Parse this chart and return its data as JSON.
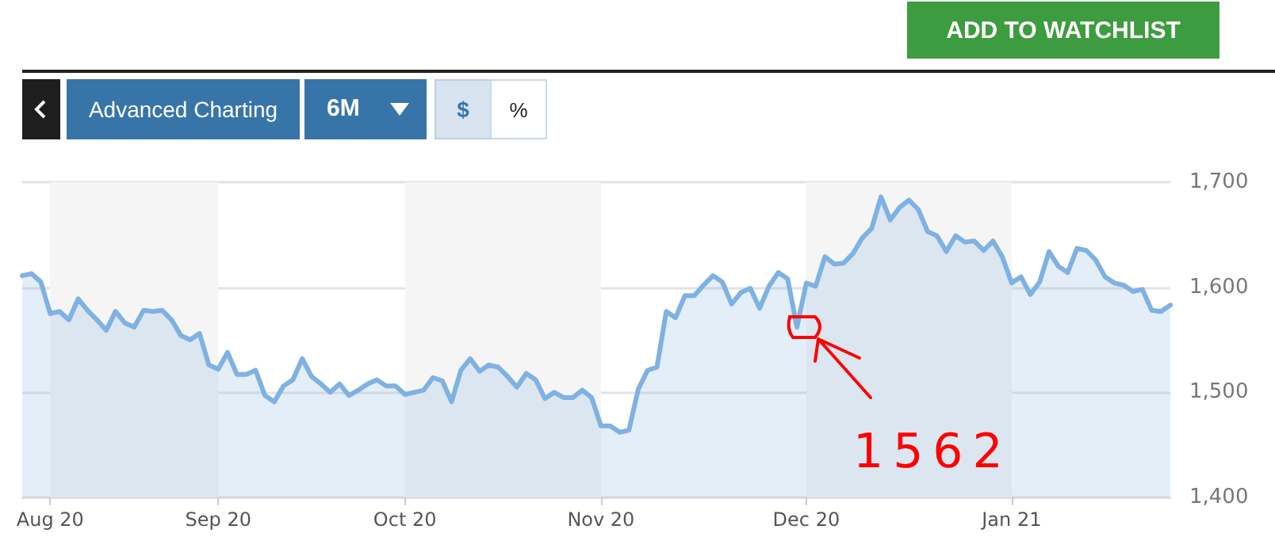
{
  "chart_data": {
    "type": "area",
    "categories": [
      null,
      null,
      null,
      "Aug 20",
      null,
      null,
      null,
      null,
      null,
      null,
      null,
      null,
      null,
      null,
      null,
      null,
      null,
      null,
      null,
      null,
      null,
      "Sep 20",
      null,
      null,
      null,
      null,
      null,
      null,
      null,
      null,
      null,
      null,
      null,
      null,
      null,
      null,
      null,
      null,
      null,
      null,
      null,
      "Oct 20",
      null,
      null,
      null,
      null,
      null,
      null,
      null,
      null,
      null,
      null,
      null,
      null,
      null,
      null,
      null,
      null,
      null,
      null,
      null,
      null,
      "Nov 20",
      null,
      null,
      null,
      null,
      null,
      null,
      null,
      null,
      null,
      null,
      null,
      null,
      null,
      null,
      null,
      null,
      null,
      null,
      null,
      null,
      null,
      "Dec 20",
      null,
      null,
      null,
      null,
      null,
      null,
      null,
      null,
      null,
      null,
      null,
      null,
      null,
      null,
      null,
      null,
      null,
      null,
      null,
      null,
      null,
      "Jan 21",
      null,
      null,
      null,
      null,
      null,
      null,
      null,
      null,
      null,
      null,
      null,
      null,
      null,
      null,
      null,
      null,
      null
    ],
    "values": [
      1611,
      1613,
      1605,
      1575,
      1577,
      1569,
      1589,
      1578,
      1569,
      1559,
      1577,
      1566,
      1562,
      1578,
      1577,
      1578,
      1569,
      1554,
      1550,
      1556,
      1526,
      1522,
      1538,
      1517,
      1517,
      1521,
      1497,
      1491,
      1506,
      1512,
      1532,
      1515,
      1508,
      1500,
      1508,
      1497,
      1502,
      1508,
      1512,
      1506,
      1506,
      1498,
      1500,
      1502,
      1514,
      1511,
      1491,
      1521,
      1532,
      1520,
      1526,
      1524,
      1515,
      1505,
      1518,
      1512,
      1494,
      1500,
      1495,
      1495,
      1502,
      1495,
      1468,
      1468,
      1462,
      1464,
      1503,
      1521,
      1524,
      1577,
      1571,
      1592,
      1592,
      1602,
      1611,
      1605,
      1584,
      1595,
      1599,
      1580,
      1601,
      1614,
      1608,
      1562,
      1604,
      1601,
      1629,
      1622,
      1623,
      1632,
      1647,
      1656,
      1686,
      1664,
      1676,
      1683,
      1674,
      1653,
      1649,
      1634,
      1649,
      1643,
      1644,
      1635,
      1644,
      1629,
      1604,
      1610,
      1593,
      1605,
      1634,
      1620,
      1614,
      1637,
      1635,
      1626,
      1610,
      1604,
      1602,
      1596,
      1598,
      1578,
      1577,
      1583
    ],
    "color": "#7fb1e3",
    "ylim": [
      1400,
      1700
    ],
    "yticks": [
      {
        "value": 1400,
        "label": "1,400"
      },
      {
        "value": 1500,
        "label": "1,500"
      },
      {
        "value": 1600,
        "label": "1,600"
      },
      {
        "value": 1700,
        "label": "1,700"
      }
    ],
    "grid": "y",
    "marker": "none",
    "line_style": "solid",
    "bands": [
      {
        "axis": "x",
        "from": "Aug 20",
        "to": "Sep 20",
        "color": "#f5f5f5"
      },
      {
        "axis": "x",
        "from": "Oct 20",
        "to": "Nov 20",
        "color": "#f5f5f5"
      },
      {
        "axis": "x",
        "from": "Dec 20",
        "to": "Jan 21",
        "color": "#f5f5f5"
      }
    ],
    "annotations": [
      "ADD TO WATCHLIST",
      "Advanced Charting",
      "6M",
      "$",
      "%",
      "1562"
    ]
  }
}
